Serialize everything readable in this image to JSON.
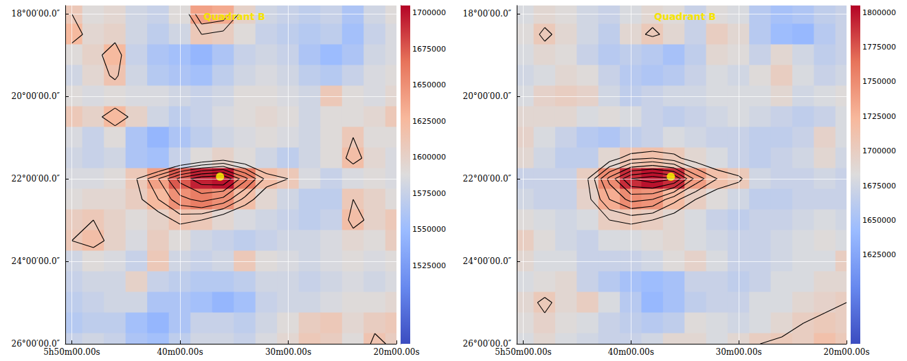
{
  "chart_data": [
    {
      "type": "heatmap",
      "title": "Quadrant B",
      "grid": true,
      "x": [
        50,
        48,
        46,
        44,
        42,
        40,
        38,
        36,
        34,
        32,
        30,
        28,
        26,
        24,
        22,
        20
      ],
      "y": [
        18,
        18.5,
        19,
        19.5,
        20,
        20.5,
        21,
        21.5,
        22,
        22.5,
        23,
        23.5,
        24,
        24.5,
        25,
        25.5,
        26
      ],
      "xlim": [
        50.6,
        20
      ],
      "ylim": [
        26,
        17.8
      ],
      "xticks": [
        {
          "value": 50,
          "label": "5h50m00.00s"
        },
        {
          "value": 40,
          "label": "40m00.00s"
        },
        {
          "value": 30,
          "label": "30m00.00s"
        },
        {
          "value": 20,
          "label": "20m00.00s"
        }
      ],
      "yticks": [
        {
          "value": 18,
          "label": "18°00′00.0″"
        },
        {
          "value": 20,
          "label": "20°00′00.0″"
        },
        {
          "value": 22,
          "label": "22°00′00.0″"
        },
        {
          "value": 24,
          "label": "24°00′00.0″"
        },
        {
          "value": 26,
          "label": "26°00′00.0″"
        }
      ],
      "color_range": [
        1471000,
        1705000
      ],
      "color_ticks": [
        1525000,
        1550000,
        1575000,
        1600000,
        1625000,
        1650000,
        1675000,
        1700000
      ],
      "contour_levels": [
        1610000,
        1625000,
        1640000,
        1655000,
        1670000,
        1685000
      ],
      "markers": [
        {
          "x": 36.3,
          "y": 21.95,
          "color": "#ffff00"
        }
      ],
      "values": [
        [
          1610000,
          1590000,
          1595000,
          1580000,
          1575000,
          1590000,
          1640000,
          1635000,
          1600000,
          1580000,
          1575000,
          1570000,
          1575000,
          1560000,
          1580000,
          1590000
        ],
        [
          1625000,
          1595000,
          1600000,
          1580000,
          1570000,
          1580000,
          1610000,
          1605000,
          1590000,
          1575000,
          1570000,
          1565000,
          1570000,
          1555000,
          1575000,
          1585000
        ],
        [
          1590000,
          1600000,
          1625000,
          1575000,
          1560000,
          1555000,
          1545000,
          1560000,
          1575000,
          1580000,
          1575000,
          1560000,
          1550000,
          1560000,
          1580000,
          1585000
        ],
        [
          1580000,
          1595000,
          1615000,
          1580000,
          1565000,
          1560000,
          1555000,
          1570000,
          1580000,
          1585000,
          1580000,
          1570000,
          1565000,
          1575000,
          1585000,
          1590000
        ],
        [
          1590000,
          1585000,
          1590000,
          1585000,
          1585000,
          1580000,
          1575000,
          1580000,
          1590000,
          1590000,
          1585000,
          1580000,
          1610000,
          1590000,
          1585000,
          1595000
        ],
        [
          1610000,
          1600000,
          1625000,
          1600000,
          1580000,
          1570000,
          1575000,
          1585000,
          1590000,
          1595000,
          1590000,
          1580000,
          1590000,
          1590000,
          1595000,
          1610000
        ],
        [
          1585000,
          1575000,
          1590000,
          1560000,
          1545000,
          1560000,
          1570000,
          1580000,
          1585000,
          1590000,
          1585000,
          1580000,
          1590000,
          1610000,
          1590000,
          1590000
        ],
        [
          1580000,
          1575000,
          1580000,
          1560000,
          1555000,
          1575000,
          1590000,
          1600000,
          1590000,
          1580000,
          1570000,
          1580000,
          1590000,
          1620000,
          1595000,
          1585000
        ],
        [
          1585000,
          1585000,
          1590000,
          1610000,
          1640000,
          1675000,
          1695000,
          1700000,
          1660000,
          1620000,
          1610000,
          1585000,
          1575000,
          1585000,
          1590000,
          1585000
        ],
        [
          1590000,
          1595000,
          1595000,
          1605000,
          1625000,
          1650000,
          1660000,
          1650000,
          1620000,
          1595000,
          1580000,
          1570000,
          1570000,
          1610000,
          1600000,
          1590000
        ],
        [
          1605000,
          1610000,
          1600000,
          1590000,
          1600000,
          1615000,
          1610000,
          1595000,
          1585000,
          1580000,
          1575000,
          1570000,
          1575000,
          1620000,
          1600000,
          1610000
        ],
        [
          1610000,
          1620000,
          1600000,
          1585000,
          1605000,
          1590000,
          1580000,
          1575000,
          1570000,
          1575000,
          1580000,
          1580000,
          1585000,
          1595000,
          1590000,
          1605000
        ],
        [
          1580000,
          1590000,
          1585000,
          1575000,
          1610000,
          1580000,
          1575000,
          1580000,
          1610000,
          1590000,
          1585000,
          1580000,
          1585000,
          1590000,
          1585000,
          1590000
        ],
        [
          1575000,
          1580000,
          1580000,
          1600000,
          1575000,
          1570000,
          1565000,
          1565000,
          1570000,
          1580000,
          1580000,
          1575000,
          1580000,
          1585000,
          1580000,
          1585000
        ],
        [
          1570000,
          1575000,
          1580000,
          1580000,
          1560000,
          1560000,
          1555000,
          1545000,
          1555000,
          1575000,
          1580000,
          1580000,
          1585000,
          1590000,
          1590000,
          1595000
        ],
        [
          1565000,
          1570000,
          1570000,
          1555000,
          1545000,
          1560000,
          1575000,
          1575000,
          1570000,
          1580000,
          1590000,
          1605000,
          1610000,
          1595000,
          1605000,
          1610000
        ],
        [
          1575000,
          1580000,
          1575000,
          1560000,
          1555000,
          1570000,
          1580000,
          1580000,
          1575000,
          1585000,
          1595000,
          1610000,
          1605000,
          1590000,
          1615000,
          1605000
        ]
      ]
    },
    {
      "type": "heatmap",
      "title": "Quadrant B",
      "grid": true,
      "x": [
        50,
        48,
        46,
        44,
        42,
        40,
        38,
        36,
        34,
        32,
        30,
        28,
        26,
        24,
        22,
        20
      ],
      "y": [
        18,
        18.5,
        19,
        19.5,
        20,
        20.5,
        21,
        21.5,
        22,
        22.5,
        23,
        23.5,
        24,
        24.5,
        25,
        25.5,
        26
      ],
      "xlim": [
        50.6,
        20
      ],
      "ylim": [
        26,
        17.8
      ],
      "xticks": [
        {
          "value": 50,
          "label": "5h50m00.00s"
        },
        {
          "value": 40,
          "label": "40m00.00s"
        },
        {
          "value": 30,
          "label": "30m00.00s"
        },
        {
          "value": 20,
          "label": "20m00.00s"
        }
      ],
      "yticks": [
        {
          "value": 18,
          "label": "18°00′00.0″"
        },
        {
          "value": 20,
          "label": "20°00′00.0″"
        },
        {
          "value": 22,
          "label": "22°00′00.0″"
        },
        {
          "value": 24,
          "label": "24°00′00.0″"
        },
        {
          "value": 26,
          "label": "26°00′00.0″"
        }
      ],
      "color_range": [
        1561000,
        1805000
      ],
      "color_ticks": [
        1625000,
        1650000,
        1675000,
        1700000,
        1725000,
        1750000,
        1775000,
        1800000
      ],
      "contour_levels": [
        1700000,
        1715000,
        1730000,
        1745000,
        1760000,
        1775000,
        1790000
      ],
      "markers": [
        {
          "x": 36.3,
          "y": 21.95,
          "color": "#ffff00"
        }
      ],
      "values": [
        [
          1680000,
          1690000,
          1685000,
          1675000,
          1670000,
          1680000,
          1690000,
          1685000,
          1670000,
          1685000,
          1680000,
          1660000,
          1650000,
          1655000,
          1665000,
          1670000
        ],
        [
          1685000,
          1705000,
          1690000,
          1675000,
          1665000,
          1690000,
          1705000,
          1690000,
          1670000,
          1700000,
          1690000,
          1660000,
          1645000,
          1640000,
          1660000,
          1670000
        ],
        [
          1680000,
          1690000,
          1685000,
          1670000,
          1660000,
          1665000,
          1660000,
          1650000,
          1665000,
          1690000,
          1685000,
          1670000,
          1690000,
          1675000,
          1665000,
          1670000
        ],
        [
          1675000,
          1680000,
          1690000,
          1685000,
          1670000,
          1660000,
          1655000,
          1660000,
          1670000,
          1680000,
          1675000,
          1685000,
          1700000,
          1680000,
          1670000,
          1675000
        ],
        [
          1680000,
          1695000,
          1700000,
          1695000,
          1675000,
          1665000,
          1670000,
          1675000,
          1675000,
          1680000,
          1680000,
          1680000,
          1690000,
          1675000,
          1680000,
          1685000
        ],
        [
          1690000,
          1690000,
          1690000,
          1680000,
          1685000,
          1680000,
          1670000,
          1665000,
          1670000,
          1675000,
          1680000,
          1675000,
          1670000,
          1665000,
          1670000,
          1680000
        ],
        [
          1695000,
          1680000,
          1670000,
          1660000,
          1655000,
          1665000,
          1670000,
          1680000,
          1675000,
          1670000,
          1670000,
          1665000,
          1665000,
          1670000,
          1695000,
          1680000
        ],
        [
          1690000,
          1675000,
          1665000,
          1665000,
          1690000,
          1710000,
          1715000,
          1705000,
          1690000,
          1680000,
          1670000,
          1665000,
          1670000,
          1675000,
          1690000,
          1675000
        ],
        [
          1670000,
          1670000,
          1670000,
          1700000,
          1750000,
          1790000,
          1800000,
          1790000,
          1740000,
          1715000,
          1705000,
          1675000,
          1670000,
          1670000,
          1675000,
          1670000
        ],
        [
          1675000,
          1670000,
          1670000,
          1695000,
          1730000,
          1750000,
          1745000,
          1720000,
          1700000,
          1685000,
          1675000,
          1665000,
          1665000,
          1670000,
          1670000,
          1670000
        ],
        [
          1685000,
          1680000,
          1675000,
          1680000,
          1700000,
          1705000,
          1700000,
          1690000,
          1680000,
          1670000,
          1665000,
          1670000,
          1670000,
          1675000,
          1680000,
          1675000
        ],
        [
          1700000,
          1685000,
          1675000,
          1670000,
          1680000,
          1680000,
          1685000,
          1690000,
          1680000,
          1675000,
          1670000,
          1670000,
          1675000,
          1680000,
          1685000,
          1680000
        ],
        [
          1690000,
          1680000,
          1680000,
          1670000,
          1670000,
          1670000,
          1675000,
          1685000,
          1695000,
          1680000,
          1670000,
          1670000,
          1675000,
          1680000,
          1680000,
          1700000
        ],
        [
          1680000,
          1685000,
          1690000,
          1670000,
          1660000,
          1650000,
          1645000,
          1650000,
          1670000,
          1670000,
          1665000,
          1670000,
          1680000,
          1680000,
          1690000,
          1690000
        ],
        [
          1690000,
          1705000,
          1690000,
          1700000,
          1680000,
          1660000,
          1640000,
          1650000,
          1665000,
          1670000,
          1670000,
          1680000,
          1680000,
          1690000,
          1695000,
          1700000
        ],
        [
          1685000,
          1695000,
          1685000,
          1680000,
          1670000,
          1665000,
          1660000,
          1665000,
          1685000,
          1680000,
          1675000,
          1680000,
          1690000,
          1700000,
          1705000,
          1700000
        ],
        [
          1680000,
          1690000,
          1680000,
          1675000,
          1670000,
          1670000,
          1675000,
          1690000,
          1690000,
          1680000,
          1690000,
          1700000,
          1705000,
          1700000,
          1715000,
          1705000
        ]
      ]
    }
  ]
}
